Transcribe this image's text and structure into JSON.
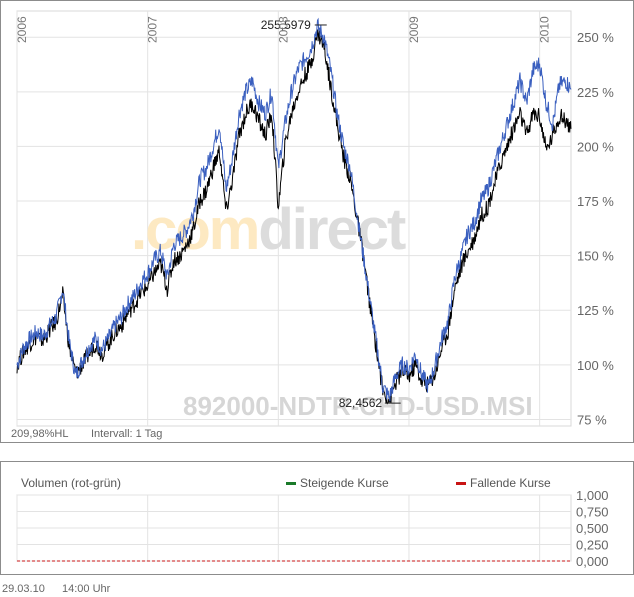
{
  "chart_data": [
    {
      "type": "line",
      "title": "",
      "xlabel": "",
      "ylabel": "",
      "x_ticks": [
        "2006",
        "2007",
        "2008",
        "2009",
        "2010"
      ],
      "y_ticks": [
        "75 %",
        "100 %",
        "125 %",
        "150 %",
        "175 %",
        "200 %",
        "225 %",
        "250 %"
      ],
      "ylim": [
        72,
        262
      ],
      "grid": true,
      "watermark_brand": ".comdirect",
      "watermark_id": "892000-NDTR-CHD-USD.MSI",
      "annotations": [
        {
          "label": "255,5979",
          "value": 255.6
        },
        {
          "label": "82,4562",
          "value": 82.46
        }
      ],
      "series": [
        {
          "color": "#3a5fbf",
          "x": [
            2006.0,
            2006.05,
            2006.1,
            2006.15,
            2006.2,
            2006.25,
            2006.3,
            2006.35,
            2006.4,
            2006.45,
            2006.5,
            2006.55,
            2006.6,
            2006.65,
            2006.7,
            2006.75,
            2006.8,
            2006.85,
            2006.9,
            2006.95,
            2007.0,
            2007.05,
            2007.1,
            2007.15,
            2007.2,
            2007.25,
            2007.3,
            2007.35,
            2007.4,
            2007.45,
            2007.5,
            2007.55,
            2007.6,
            2007.65,
            2007.7,
            2007.75,
            2007.8,
            2007.85,
            2007.9,
            2007.95,
            2008.0,
            2008.05,
            2008.1,
            2008.15,
            2008.2,
            2008.25,
            2008.3,
            2008.35,
            2008.4,
            2008.45,
            2008.5,
            2008.55,
            2008.6,
            2008.65,
            2008.7,
            2008.75,
            2008.8,
            2008.85,
            2008.9,
            2008.95,
            2009.0,
            2009.05,
            2009.1,
            2009.15,
            2009.2,
            2009.25,
            2009.3,
            2009.35,
            2009.4,
            2009.45,
            2009.5,
            2009.55,
            2009.6,
            2009.65,
            2009.7,
            2009.75,
            2009.8,
            2009.85,
            2009.9,
            2009.95,
            2010.0,
            2010.05,
            2010.1,
            2010.15,
            2010.2,
            2010.24
          ],
          "y": [
            100,
            108,
            112,
            115,
            113,
            118,
            122,
            135,
            110,
            95,
            102,
            108,
            112,
            107,
            112,
            118,
            122,
            128,
            132,
            138,
            142,
            148,
            152,
            140,
            155,
            158,
            162,
            170,
            185,
            190,
            200,
            210,
            180,
            195,
            215,
            225,
            230,
            220,
            215,
            225,
            190,
            210,
            225,
            235,
            240,
            245,
            255,
            250,
            235,
            215,
            200,
            190,
            170,
            150,
            130,
            110,
            90,
            85,
            95,
            100,
            98,
            105,
            95,
            90,
            100,
            112,
            120,
            140,
            150,
            160,
            165,
            175,
            180,
            190,
            200,
            210,
            220,
            230,
            220,
            235,
            238,
            220,
            210,
            228,
            230,
            226
          ]
        },
        {
          "color": "#000000",
          "x": [
            2006.0,
            2006.05,
            2006.1,
            2006.15,
            2006.2,
            2006.25,
            2006.3,
            2006.35,
            2006.4,
            2006.45,
            2006.5,
            2006.55,
            2006.6,
            2006.65,
            2006.7,
            2006.75,
            2006.8,
            2006.85,
            2006.9,
            2006.95,
            2007.0,
            2007.05,
            2007.1,
            2007.15,
            2007.2,
            2007.25,
            2007.3,
            2007.35,
            2007.4,
            2007.45,
            2007.5,
            2007.55,
            2007.6,
            2007.65,
            2007.7,
            2007.75,
            2007.8,
            2007.85,
            2007.9,
            2007.95,
            2008.0,
            2008.05,
            2008.1,
            2008.15,
            2008.2,
            2008.25,
            2008.3,
            2008.35,
            2008.4,
            2008.45,
            2008.5,
            2008.55,
            2008.6,
            2008.65,
            2008.7,
            2008.75,
            2008.8,
            2008.85,
            2008.9,
            2008.95,
            2009.0,
            2009.05,
            2009.1,
            2009.15,
            2009.2,
            2009.25,
            2009.3,
            2009.35,
            2009.4,
            2009.45,
            2009.5,
            2009.55,
            2009.6,
            2009.65,
            2009.7,
            2009.75,
            2009.8,
            2009.85,
            2009.9,
            2009.95,
            2010.0,
            2010.05,
            2010.1,
            2010.15,
            2010.2,
            2010.24
          ],
          "y": [
            100,
            106,
            110,
            113,
            111,
            116,
            120,
            132,
            108,
            96,
            100,
            105,
            110,
            105,
            110,
            115,
            118,
            124,
            128,
            133,
            136,
            142,
            146,
            135,
            148,
            150,
            155,
            162,
            175,
            180,
            190,
            198,
            170,
            185,
            205,
            215,
            220,
            212,
            205,
            215,
            172,
            200,
            215,
            225,
            232,
            238,
            252,
            246,
            228,
            210,
            195,
            185,
            168,
            150,
            128,
            108,
            88,
            84,
            92,
            97,
            95,
            100,
            92,
            91,
            96,
            108,
            116,
            135,
            145,
            152,
            158,
            168,
            172,
            182,
            192,
            200,
            208,
            215,
            205,
            215,
            214,
            198,
            205,
            214,
            212,
            208
          ]
        }
      ]
    },
    {
      "type": "bar",
      "title": "Volumen (rot-grün)",
      "legend": [
        {
          "name": "Steigende Kurse",
          "color": "#1a7a2a"
        },
        {
          "name": "Fallende Kurse",
          "color": "#c81414"
        }
      ],
      "y_ticks": [
        "1,000",
        "0,750",
        "0,500",
        "0,250",
        "0,000"
      ],
      "ylim": [
        0,
        1
      ],
      "values": []
    }
  ],
  "footer": {
    "left_label": "209,98%HL",
    "interval_label": "Intervall: 1 Tag",
    "date": "29.03.10",
    "time": "14:00 Uhr"
  },
  "colors": {
    "grid": "#e3e3e3",
    "watermark_orange": "#fde9c2",
    "watermark_grey": "#dcdcdc"
  }
}
